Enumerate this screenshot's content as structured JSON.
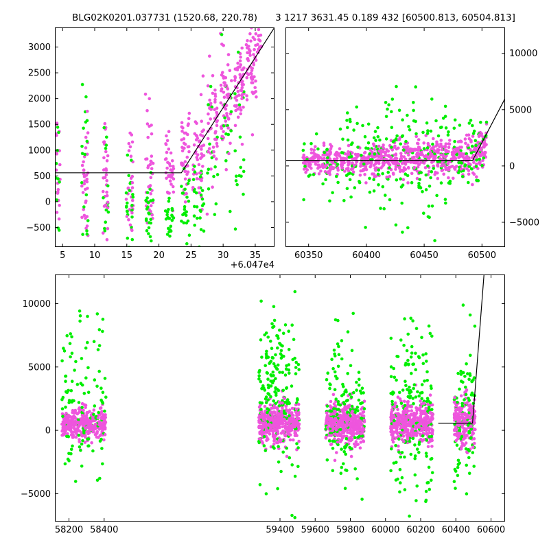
{
  "header": {
    "title_left": "BLG02K0201.037731 (1520.68, 220.78)",
    "title_right": "3 1217 3631.45 0.189 432 [60500.813, 60504.813]"
  },
  "colors": {
    "series_a": "#ee55dd",
    "series_b": "#00ee00",
    "model": "#000000"
  },
  "chart_data": [
    {
      "type": "scatter",
      "panel": "top-left",
      "offset_text": "+6.047e4",
      "xlim": [
        3.8,
        38.0
      ],
      "ylim": [
        -880,
        3380
      ],
      "x_ticks": [
        5,
        10,
        15,
        20,
        25,
        30,
        35
      ],
      "x_tick_labels": [
        "5",
        "10",
        "15",
        "20",
        "25",
        "30",
        "35"
      ],
      "y_ticks": [
        -500,
        0,
        500,
        1000,
        1500,
        2000,
        2500,
        3000
      ],
      "y_tick_labels": [
        "−500",
        "0",
        "500",
        "1000",
        "1500",
        "2000",
        "2500",
        "3000"
      ],
      "model_line": {
        "x": [
          3.8,
          23.5,
          38.0
        ],
        "y": [
          560,
          560,
          3380
        ]
      },
      "series": [
        {
          "color_key": "series_a",
          "clusters": [
            {
              "x": [
                3.9,
                4.6
              ],
              "y_mean": 700,
              "y_sd": 650,
              "n": 14
            },
            {
              "x": [
                8.0,
                9.0
              ],
              "y_mean": 500,
              "y_sd": 650,
              "n": 24
            },
            {
              "x": [
                11.3,
                12.2
              ],
              "y_mean": 450,
              "y_sd": 650,
              "n": 22
            },
            {
              "x": [
                14.9,
                16.0
              ],
              "y_mean": 300,
              "y_sd": 550,
              "n": 22
            },
            {
              "x": [
                17.9,
                19.1
              ],
              "y_mean": 600,
              "y_sd": 700,
              "n": 26
            },
            {
              "x": [
                21.0,
                22.3
              ],
              "y_mean": 600,
              "y_sd": 350,
              "n": 26
            },
            {
              "x": [
                23.5,
                24.8
              ],
              "y_mean": 850,
              "y_sd": 450,
              "n": 30
            },
            {
              "x": [
                25.3,
                27.0
              ],
              "y_mean": 1000,
              "y_sd": 500,
              "n": 36
            },
            {
              "x": [
                27.5,
                29.2
              ],
              "y_mean": 1500,
              "y_sd": 500,
              "n": 36
            },
            {
              "x": [
                29.6,
                31.3
              ],
              "y_mean": 1900,
              "y_sd": 500,
              "n": 40
            },
            {
              "x": [
                31.8,
                33.3
              ],
              "y_mean": 2200,
              "y_sd": 450,
              "n": 40
            },
            {
              "x": [
                33.6,
                35.2
              ],
              "y_mean": 2600,
              "y_sd": 450,
              "n": 40
            },
            {
              "x": [
                35.3,
                36.0
              ],
              "y_mean": 3100,
              "y_sd": 200,
              "n": 10
            }
          ]
        },
        {
          "color_key": "series_b",
          "clusters": [
            {
              "x": [
                3.9,
                4.6
              ],
              "y_mean": 0,
              "y_sd": 1100,
              "n": 12
            },
            {
              "x": [
                8.0,
                9.0
              ],
              "y_mean": 300,
              "y_sd": 900,
              "n": 20
            },
            {
              "x": [
                11.3,
                12.2
              ],
              "y_mean": -200,
              "y_sd": 700,
              "n": 16
            },
            {
              "x": [
                14.9,
                16.0
              ],
              "y_mean": -300,
              "y_sd": 500,
              "n": 24
            },
            {
              "x": [
                17.9,
                19.1
              ],
              "y_mean": -200,
              "y_sd": 400,
              "n": 26
            },
            {
              "x": [
                21.0,
                22.3
              ],
              "y_mean": -300,
              "y_sd": 300,
              "n": 24
            },
            {
              "x": [
                23.5,
                24.8
              ],
              "y_mean": -200,
              "y_sd": 400,
              "n": 22
            },
            {
              "x": [
                25.3,
                27.0
              ],
              "y_mean": -100,
              "y_sd": 500,
              "n": 28
            },
            {
              "x": [
                27.5,
                29.2
              ],
              "y_mean": 800,
              "y_sd": 700,
              "n": 16
            },
            {
              "x": [
                29.6,
                31.3
              ],
              "y_mean": 1400,
              "y_sd": 600,
              "n": 16
            },
            {
              "x": [
                31.8,
                33.3
              ],
              "y_mean": 1000,
              "y_sd": 800,
              "n": 18
            }
          ]
        }
      ]
    },
    {
      "type": "scatter",
      "panel": "top-right",
      "xlim": [
        60330,
        60520
      ],
      "ylim": [
        -7200,
        12300
      ],
      "x_ticks": [
        60350,
        60400,
        60450,
        60500
      ],
      "x_tick_labels": [
        "60350",
        "60400",
        "60450",
        "60500"
      ],
      "y_ticks": [
        -5000,
        0,
        5000,
        10000
      ],
      "y_tick_labels": [
        "−5000",
        "0",
        "5000",
        "10000"
      ],
      "model_line": {
        "x": [
          60330,
          60492,
          60520
        ],
        "y": [
          500,
          500,
          6000
        ]
      },
      "series": [
        {
          "color_key": "series_a",
          "clusters": [
            {
              "x": [
                60345,
                60375
              ],
              "y_mean": 500,
              "y_sd": 600,
              "n": 90
            },
            {
              "x": [
                60375,
                60410
              ],
              "y_mean": 500,
              "y_sd": 700,
              "n": 110
            },
            {
              "x": [
                60410,
                60440
              ],
              "y_mean": 600,
              "y_sd": 800,
              "n": 110
            },
            {
              "x": [
                60440,
                60470
              ],
              "y_mean": 700,
              "y_sd": 900,
              "n": 110
            },
            {
              "x": [
                60470,
                60497
              ],
              "y_mean": 700,
              "y_sd": 900,
              "n": 100
            },
            {
              "x": [
                60497,
                60504
              ],
              "y_mean": 1800,
              "y_sd": 900,
              "n": 40
            }
          ]
        },
        {
          "color_key": "series_b",
          "clusters": [
            {
              "x": [
                60345,
                60375
              ],
              "y_mean": 0,
              "y_sd": 1300,
              "n": 30
            },
            {
              "x": [
                60375,
                60410
              ],
              "y_mean": 300,
              "y_sd": 2200,
              "n": 60
            },
            {
              "x": [
                60410,
                60440
              ],
              "y_mean": 800,
              "y_sd": 3000,
              "n": 70
            },
            {
              "x": [
                60440,
                60470
              ],
              "y_mean": 1000,
              "y_sd": 2600,
              "n": 70
            },
            {
              "x": [
                60470,
                60497
              ],
              "y_mean": 700,
              "y_sd": 1800,
              "n": 50
            },
            {
              "x": [
                60497,
                60504
              ],
              "y_mean": 1500,
              "y_sd": 1200,
              "n": 14
            }
          ]
        }
      ]
    },
    {
      "type": "scatter",
      "panel": "bottom",
      "xlim": [
        58120,
        60680
      ],
      "ylim": [
        -7200,
        12300
      ],
      "x_ticks": [
        58200,
        58400,
        59400,
        59600,
        59800,
        60000,
        60200,
        60400,
        60600
      ],
      "x_tick_labels": [
        "58200",
        "58400",
        "59400",
        "59600",
        "59800",
        "60000",
        "60200",
        "60400",
        "60600"
      ],
      "y_ticks": [
        -5000,
        0,
        5000,
        10000
      ],
      "y_tick_labels": [
        "−5000",
        "0",
        "5000",
        "10000"
      ],
      "model_line": {
        "x": [
          60300,
          60495,
          60560
        ],
        "y": [
          570,
          570,
          12300
        ]
      },
      "series": [
        {
          "color_key": "series_a",
          "clusters": [
            {
              "x": [
                58160,
                58410
              ],
              "y_mean": 400,
              "y_sd": 650,
              "n": 260
            },
            {
              "x": [
                59280,
                59510
              ],
              "y_mean": 600,
              "y_sd": 800,
              "n": 300
            },
            {
              "x": [
                59660,
                59880
              ],
              "y_mean": 500,
              "y_sd": 850,
              "n": 300
            },
            {
              "x": [
                60030,
                60270
              ],
              "y_mean": 550,
              "y_sd": 850,
              "n": 300
            },
            {
              "x": [
                60390,
                60510
              ],
              "y_mean": 700,
              "y_sd": 1000,
              "n": 160
            }
          ]
        },
        {
          "color_key": "series_b",
          "clusters": [
            {
              "x": [
                58160,
                58410
              ],
              "y_mean": 2000,
              "y_sd": 3200,
              "n": 120
            },
            {
              "x": [
                59280,
                59510
              ],
              "y_mean": 3000,
              "y_sd": 3200,
              "n": 200
            },
            {
              "x": [
                59660,
                59880
              ],
              "y_mean": 1500,
              "y_sd": 3000,
              "n": 150
            },
            {
              "x": [
                60030,
                60270
              ],
              "y_mean": 1500,
              "y_sd": 3500,
              "n": 170
            },
            {
              "x": [
                60390,
                60510
              ],
              "y_mean": 1200,
              "y_sd": 3500,
              "n": 90
            }
          ]
        }
      ]
    }
  ]
}
